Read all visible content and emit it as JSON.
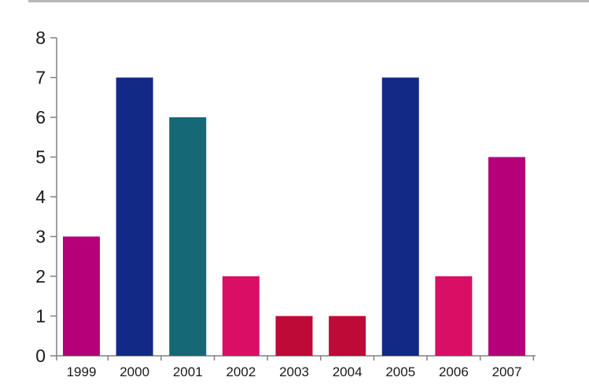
{
  "chart_data": {
    "type": "bar",
    "categories": [
      "1999",
      "2000",
      "2001",
      "2002",
      "2003",
      "2004",
      "2005",
      "2006",
      "2007"
    ],
    "values": [
      3,
      7,
      6,
      2,
      1,
      1,
      7,
      2,
      5
    ],
    "bar_colors": [
      "#b5007a",
      "#122a85",
      "#156977",
      "#d80f65",
      "#bd0a37",
      "#bd0a37",
      "#122a85",
      "#d80f65",
      "#b5007a"
    ],
    "ylim": [
      0,
      8
    ],
    "yticks": [
      0,
      1,
      2,
      3,
      4,
      5,
      6,
      7,
      8
    ],
    "title": "",
    "xlabel": "",
    "ylabel": "",
    "grid": false,
    "axis_color": "#808080"
  }
}
